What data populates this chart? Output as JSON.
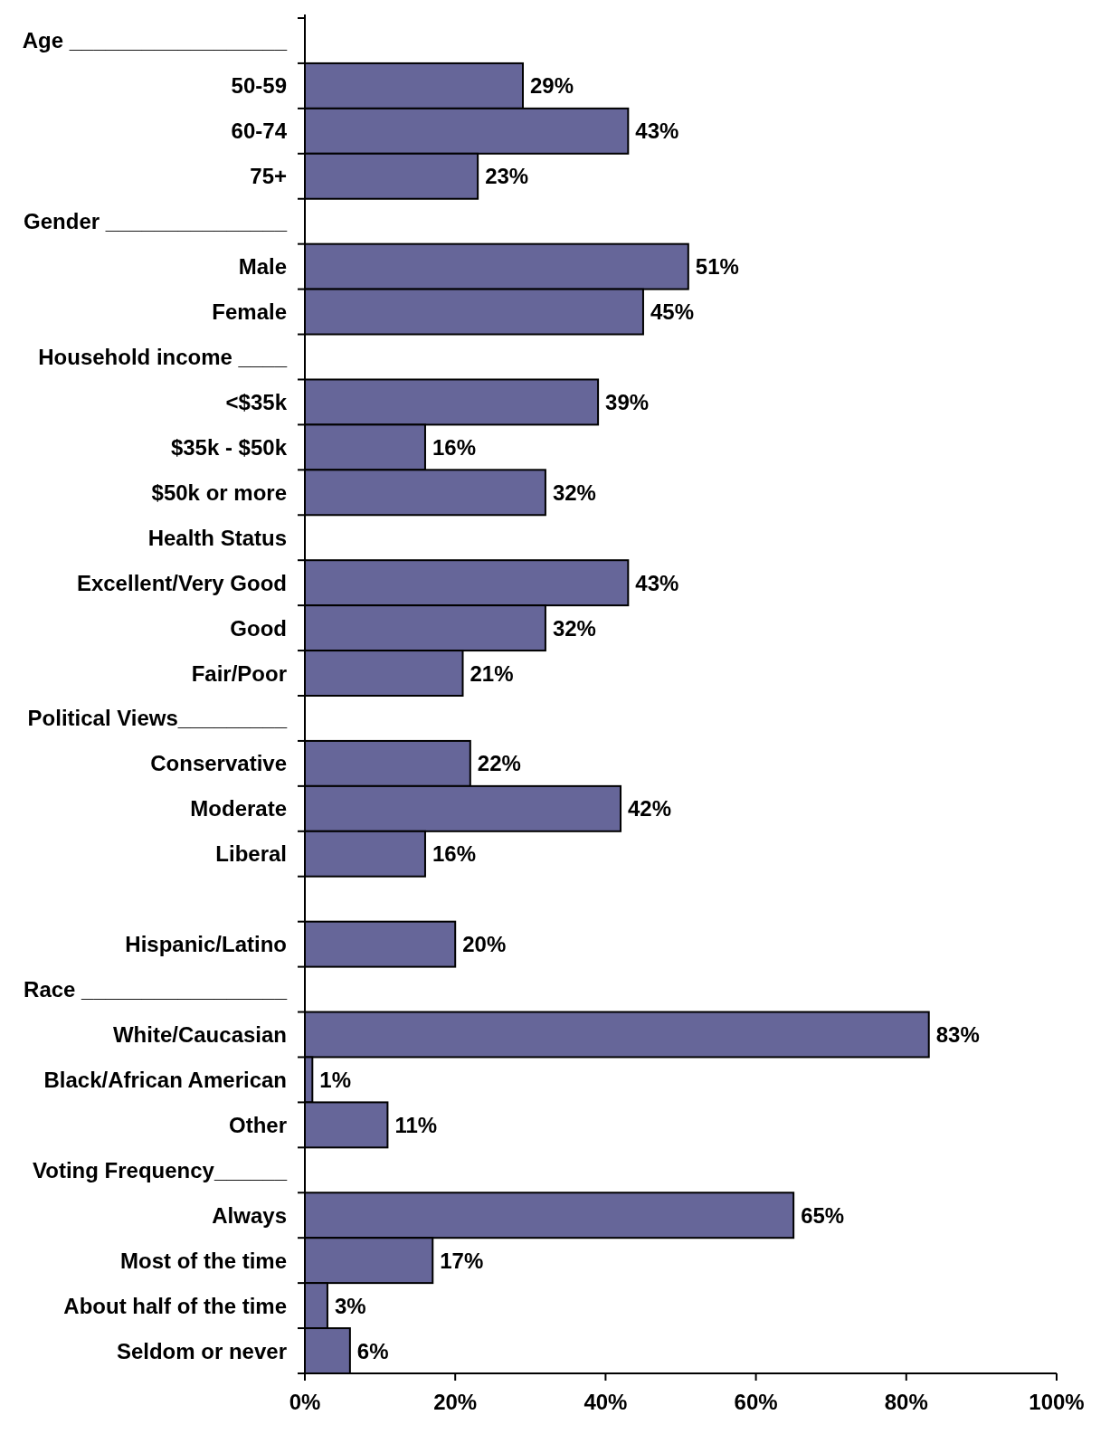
{
  "chart_data": {
    "type": "bar",
    "orientation": "horizontal",
    "categories": [
      "Age __________________",
      "50-59",
      "60-74",
      "75+",
      "Gender _______________",
      "Male",
      "Female",
      "Household income ____",
      "<$35k",
      "$35k - $50k",
      "$50k or more",
      "Health Status",
      "Excellent/Very Good",
      "Good",
      "Fair/Poor",
      "Political Views_________",
      "Conservative",
      "Moderate",
      "Liberal",
      null,
      "Hispanic/Latino",
      "Race _________________",
      "White/Caucasian",
      "Black/African American",
      "Other",
      "Voting Frequency______",
      "Always",
      "Most of the time",
      "About half of the time",
      "Seldom or never"
    ],
    "values": [
      null,
      29,
      43,
      23,
      null,
      51,
      45,
      null,
      39,
      16,
      32,
      null,
      43,
      32,
      21,
      null,
      22,
      42,
      16,
      null,
      20,
      null,
      83,
      1,
      11,
      null,
      65,
      17,
      3,
      6
    ],
    "value_labels": [
      null,
      "29%",
      "43%",
      "23%",
      null,
      "51%",
      "45%",
      null,
      "39%",
      "16%",
      "32%",
      null,
      "43%",
      "32%",
      "21%",
      null,
      "22%",
      "42%",
      "16%",
      null,
      "20%",
      null,
      "83%",
      "1%",
      "11%",
      null,
      "65%",
      "17%",
      "3%",
      "6%"
    ],
    "color": "#666699",
    "xlim": [
      0,
      100
    ],
    "xticks": [
      {
        "value": 0,
        "label": "0%"
      },
      {
        "value": 20,
        "label": "20%"
      },
      {
        "value": 40,
        "label": "40%"
      },
      {
        "value": 60,
        "label": "60%"
      },
      {
        "value": 80,
        "label": "80%"
      },
      {
        "value": 100,
        "label": "100%"
      }
    ],
    "data_labels": false
  }
}
